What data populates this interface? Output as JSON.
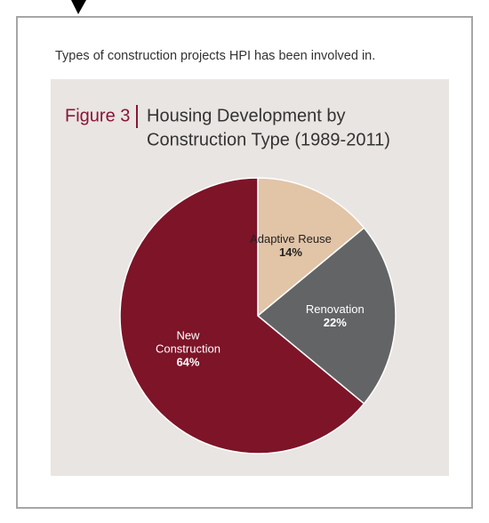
{
  "caption": "Types of construction projects HPI has been involved in.",
  "chart_data": {
    "type": "pie",
    "figure_label": "Figure 3",
    "title": [
      "Housing Development by",
      "Construction Type (1989-2011)"
    ],
    "categories": [
      "Adaptive Reuse",
      "Renovation",
      "New Construction"
    ],
    "values": [
      14,
      22,
      64
    ],
    "value_labels": [
      "14%",
      "22%",
      "64%"
    ],
    "colors": [
      "#e2c4a7",
      "#636466",
      "#7d1428"
    ]
  }
}
